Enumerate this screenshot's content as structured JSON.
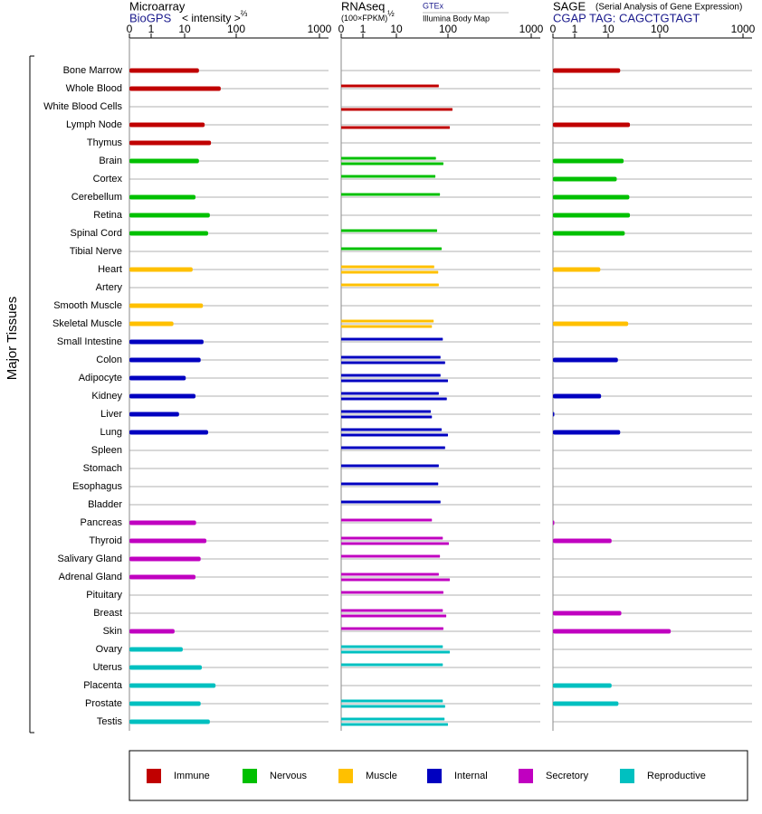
{
  "y_label": "Major Tissues",
  "categories": [
    "Bone Marrow",
    "Whole Blood",
    "White Blood Cells",
    "Lymph Node",
    "Thymus",
    "Brain",
    "Cortex",
    "Cerebellum",
    "Retina",
    "Spinal Cord",
    "Tibial Nerve",
    "Heart",
    "Artery",
    "Smooth Muscle",
    "Skeletal Muscle",
    "Small Intestine",
    "Colon",
    "Adipocyte",
    "Kidney",
    "Liver",
    "Lung",
    "Spleen",
    "Stomach",
    "Esophagus",
    "Bladder",
    "Pancreas",
    "Thyroid",
    "Salivary Gland",
    "Adrenal Gland",
    "Pituitary",
    "Breast",
    "Skin",
    "Ovary",
    "Uterus",
    "Placenta",
    "Prostate",
    "Testis"
  ],
  "category_groups": [
    "Immune",
    "Immune",
    "Immune",
    "Immune",
    "Immune",
    "Nervous",
    "Nervous",
    "Nervous",
    "Nervous",
    "Nervous",
    "Nervous",
    "Muscle",
    "Muscle",
    "Muscle",
    "Muscle",
    "Internal",
    "Internal",
    "Internal",
    "Internal",
    "Internal",
    "Internal",
    "Internal",
    "Internal",
    "Internal",
    "Internal",
    "Secretory",
    "Secretory",
    "Secretory",
    "Secretory",
    "Secretory",
    "Secretory",
    "Secretory",
    "Reproductive",
    "Reproductive",
    "Reproductive",
    "Reproductive",
    "Reproductive"
  ],
  "groups": [
    {
      "name": "Immune",
      "color": "#c00000"
    },
    {
      "name": "Nervous",
      "color": "#00c000"
    },
    {
      "name": "Muscle",
      "color": "#ffc000"
    },
    {
      "name": "Internal",
      "color": "#0000c0"
    },
    {
      "name": "Secretory",
      "color": "#c000c0"
    },
    {
      "name": "Reproductive",
      "color": "#00c0c0"
    }
  ],
  "chart_data": [
    {
      "type": "bar",
      "title": "Microarray",
      "subtitle": "BioGPS",
      "axis_label": "< intensity >",
      "axis_label_exponent": "⅔",
      "xlim": [
        0,
        1000
      ],
      "xticks": [
        0,
        1,
        10,
        100,
        1000
      ],
      "series": [
        {
          "values": [
            35,
            73,
            null,
            45,
            56,
            35,
            null,
            29,
            54,
            51,
            null,
            24,
            null,
            42,
            7,
            43,
            38,
            12,
            29,
            8.5,
            51,
            null,
            null,
            null,
            null,
            30,
            48,
            38,
            29,
            null,
            null,
            7.3,
            9.5,
            40,
            64,
            38,
            54
          ]
        }
      ]
    },
    {
      "type": "bar",
      "title": "RNAseq",
      "axis_label": "(100×FPKM)",
      "axis_label_exponent": "½",
      "xlim": [
        0,
        1000
      ],
      "xticks": [
        0,
        1,
        10,
        100,
        1000
      ],
      "series": [
        {
          "name": "GTEx",
          "values": [
            null,
            84,
            null,
            null,
            null,
            79,
            78,
            86,
            null,
            81,
            89,
            76,
            84,
            null,
            75,
            91,
            87,
            87,
            84,
            70,
            89,
            95,
            84,
            83,
            87,
            72,
            91,
            86,
            84,
            92,
            91,
            92,
            91,
            91,
            null,
            91,
            94
          ]
        },
        {
          "name": "Illumina Body Map",
          "values": [
            null,
            null,
            149,
            120,
            null,
            92,
            null,
            null,
            null,
            null,
            null,
            83,
            null,
            null,
            72,
            null,
            95,
            100,
            98,
            72,
            100,
            null,
            null,
            null,
            null,
            null,
            110,
            null,
            120,
            null,
            97,
            null,
            120,
            null,
            null,
            95,
            100
          ]
        }
      ]
    },
    {
      "type": "bar",
      "title": "SAGE",
      "note": "(Serial Analysis of Gene Expression)",
      "subtitle": "CGAP TAG: CAGCTGTAGT",
      "xlim": [
        0,
        1000
      ],
      "xticks": [
        0,
        1,
        10,
        100,
        1000
      ],
      "series": [
        {
          "values": [
            31,
            null,
            null,
            48,
            null,
            37,
            25,
            47,
            48,
            39,
            null,
            7.9,
            null,
            null,
            45,
            null,
            27,
            null,
            8.1,
            0.05,
            31,
            null,
            null,
            null,
            null,
            0.05,
            16,
            null,
            null,
            null,
            33,
            219,
            null,
            null,
            16,
            28,
            null
          ]
        }
      ]
    }
  ]
}
